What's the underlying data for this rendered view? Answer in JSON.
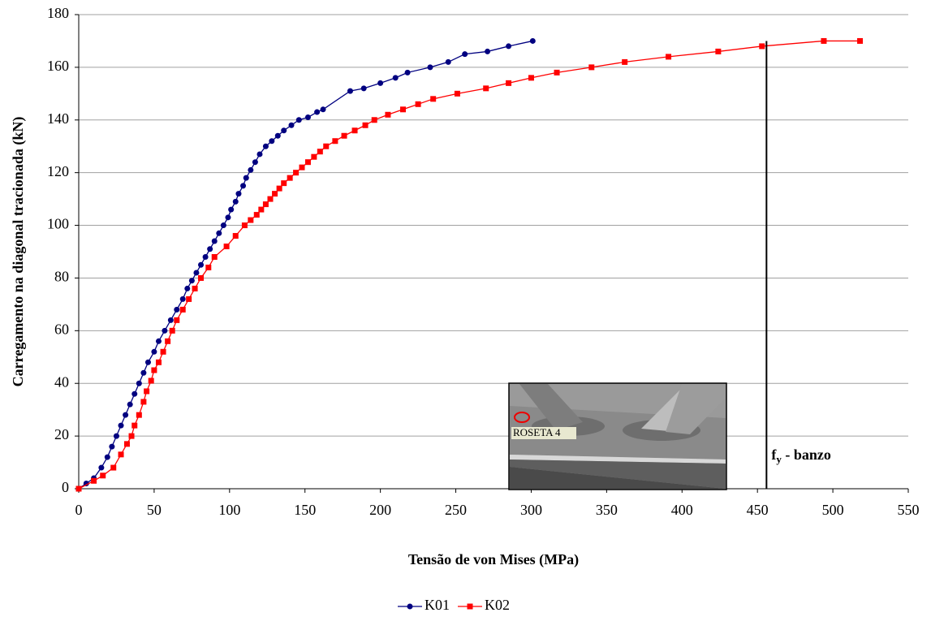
{
  "chart_data": {
    "type": "line",
    "x_label": "Tensão de von Mises (MPa)",
    "y_label": "Carregamento na diagonal tracionada (kN)",
    "xlim": [
      0,
      550
    ],
    "xticks": [
      0,
      50,
      100,
      150,
      200,
      250,
      300,
      350,
      400,
      450,
      500,
      550
    ],
    "ylim": [
      0,
      180
    ],
    "yticks": [
      0,
      20,
      40,
      60,
      80,
      100,
      120,
      140,
      160,
      180
    ],
    "grid": true,
    "legend": "bottom",
    "series": [
      {
        "name": "K01",
        "color": "#000080",
        "marker": "circle",
        "x": [
          0,
          5,
          10,
          15,
          19,
          22,
          25,
          28,
          31,
          34,
          37,
          40,
          43,
          46,
          50,
          53,
          57,
          61,
          65,
          69,
          72,
          75,
          78,
          81,
          84,
          87,
          90,
          93,
          96,
          99,
          101,
          104,
          106,
          109,
          111,
          114,
          117,
          120,
          124,
          128,
          132,
          136,
          141,
          146,
          152,
          158,
          162,
          180,
          189,
          200,
          210,
          218,
          233,
          245,
          256,
          271,
          285,
          301
        ],
        "values": [
          0,
          2,
          4,
          8,
          12,
          16,
          20,
          24,
          28,
          32,
          36,
          40,
          44,
          48,
          52,
          56,
          60,
          64,
          68,
          72,
          76,
          79,
          82,
          85,
          88,
          91,
          94,
          97,
          100,
          103,
          106,
          109,
          112,
          115,
          118,
          121,
          124,
          127,
          130,
          132,
          134,
          136,
          138,
          140,
          141,
          143,
          144,
          151,
          152,
          154,
          156,
          158,
          160,
          162,
          165,
          166,
          168,
          170
        ]
      },
      {
        "name": "K02",
        "color": "#ff0000",
        "marker": "square",
        "x": [
          0,
          10,
          16,
          23,
          28,
          32,
          35,
          37,
          40,
          43,
          45,
          48,
          50,
          53,
          56,
          59,
          62,
          65,
          69,
          73,
          77,
          81,
          86,
          90,
          98,
          104,
          110,
          114,
          118,
          121,
          124,
          127,
          130,
          133,
          136,
          140,
          144,
          148,
          152,
          156,
          160,
          164,
          170,
          176,
          183,
          190,
          196,
          205,
          215,
          225,
          235,
          251,
          270,
          285,
          300,
          317,
          340,
          362,
          391,
          424,
          453,
          494,
          518
        ],
        "values": [
          0,
          3,
          5,
          8,
          13,
          17,
          20,
          24,
          28,
          33,
          37,
          41,
          45,
          48,
          52,
          56,
          60,
          64,
          68,
          72,
          76,
          80,
          84,
          88,
          92,
          96,
          100,
          102,
          104,
          106,
          108,
          110,
          112,
          114,
          116,
          118,
          120,
          122,
          124,
          126,
          128,
          130,
          132,
          134,
          136,
          138,
          140,
          142,
          144,
          146,
          148,
          150,
          152,
          154,
          156,
          158,
          160,
          162,
          164,
          166,
          168,
          170,
          170
        ]
      }
    ],
    "reference_line": {
      "x": 456,
      "label_main": "f",
      "label_sub": "y",
      "label_rest": " - banzo"
    },
    "inset_label": "ROSETA 4"
  }
}
